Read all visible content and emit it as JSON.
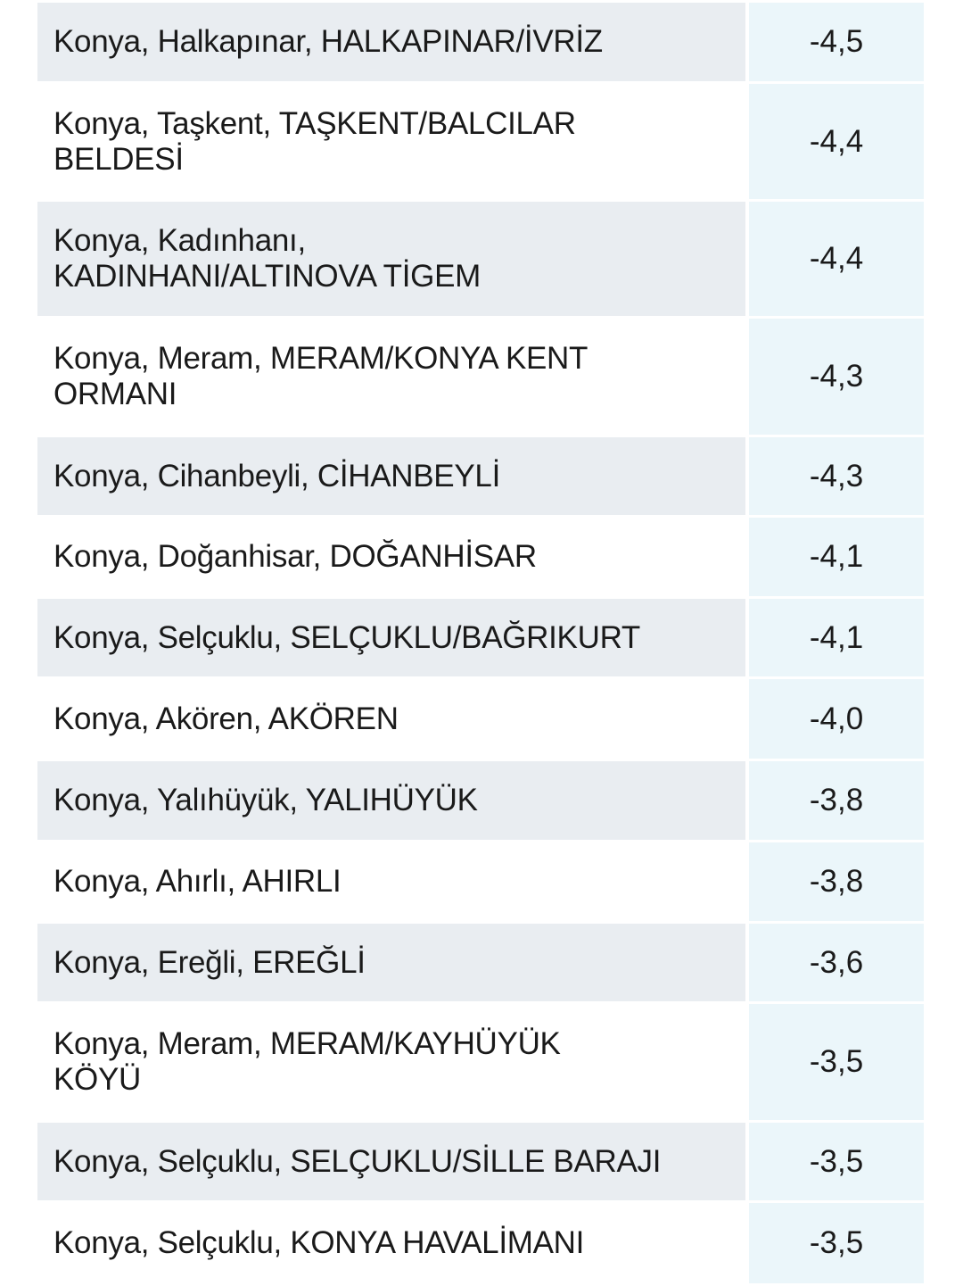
{
  "rows": [
    {
      "location": "Konya, Halkapınar, HALKAPINAR/İVRİZ",
      "value": "-4,5"
    },
    {
      "location": "Konya, Taşkent, TAŞKENT/BALCILAR\nBELDESİ",
      "value": "-4,4"
    },
    {
      "location": "Konya, Kadınhanı,\nKADINHANI/ALTINOVA TİGEM",
      "value": "-4,4"
    },
    {
      "location": "Konya, Meram, MERAM/KONYA KENT\nORMANI",
      "value": "-4,3"
    },
    {
      "location": "Konya, Cihanbeyli, CİHANBEYLİ",
      "value": "-4,3"
    },
    {
      "location": "Konya, Doğanhisar, DOĞANHİSAR",
      "value": "-4,1"
    },
    {
      "location": "Konya, Selçuklu, SELÇUKLU/BAĞRIKURT",
      "value": "-4,1"
    },
    {
      "location": "Konya, Akören, AKÖREN",
      "value": "-4,0"
    },
    {
      "location": "Konya, Yalıhüyük, YALIHÜYÜK",
      "value": "-3,8"
    },
    {
      "location": "Konya, Ahırlı, AHIRLI",
      "value": "-3,8"
    },
    {
      "location": "Konya, Ereğli, EREĞLİ",
      "value": "-3,6"
    },
    {
      "location": "Konya, Meram, MERAM/KAYHÜYÜK\nKÖYÜ",
      "value": "-3,5"
    },
    {
      "location": "Konya, Selçuklu, SELÇUKLU/SİLLE BARAJI",
      "value": "-3,5"
    },
    {
      "location": "Konya, Selçuklu, KONYA HAVALİMANI",
      "value": "-3,5"
    }
  ]
}
